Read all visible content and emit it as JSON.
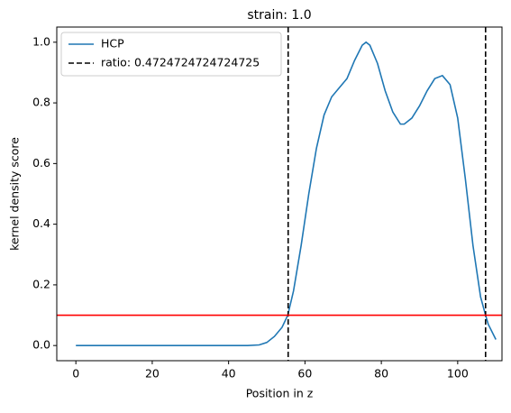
{
  "chart_data": {
    "type": "line",
    "title": "strain: 1.0",
    "xlabel": "Position in z",
    "ylabel": "kernel density score",
    "x": [
      0,
      10,
      20,
      30,
      40,
      45,
      48,
      50,
      52,
      54,
      55.5,
      57,
      59,
      61,
      63,
      65,
      67,
      69,
      71,
      73,
      75,
      76,
      77,
      79,
      81,
      83,
      85,
      86,
      88,
      90,
      92,
      94,
      96,
      98,
      100,
      102,
      104,
      106,
      107.3,
      108,
      110
    ],
    "series": [
      {
        "name": "HCP",
        "color": "#1f77b4",
        "values": [
          0,
          0,
          0,
          0,
          0,
          0,
          0.002,
          0.01,
          0.03,
          0.06,
          0.1,
          0.18,
          0.33,
          0.5,
          0.65,
          0.76,
          0.82,
          0.85,
          0.88,
          0.94,
          0.99,
          1.0,
          0.99,
          0.93,
          0.84,
          0.77,
          0.73,
          0.73,
          0.75,
          0.79,
          0.84,
          0.88,
          0.89,
          0.86,
          0.75,
          0.55,
          0.33,
          0.16,
          0.1,
          0.07,
          0.02
        ]
      }
    ],
    "vlines": {
      "name": "ratio: 0.4724724724724725",
      "color": "#000000",
      "values": [
        55.6,
        107.3
      ]
    },
    "hline": {
      "value": 0.1,
      "color": "#ff0000"
    },
    "xlim": [
      -5,
      111.6
    ],
    "ylim": [
      -0.05,
      1.05
    ],
    "xticks": [
      0,
      20,
      40,
      60,
      80,
      100
    ],
    "yticks": [
      {
        "value": 0,
        "label": "0.0"
      },
      0.2,
      0.4,
      0.6,
      0.8,
      {
        "value": 1,
        "label": "1.0"
      }
    ],
    "legend": "upper left"
  }
}
